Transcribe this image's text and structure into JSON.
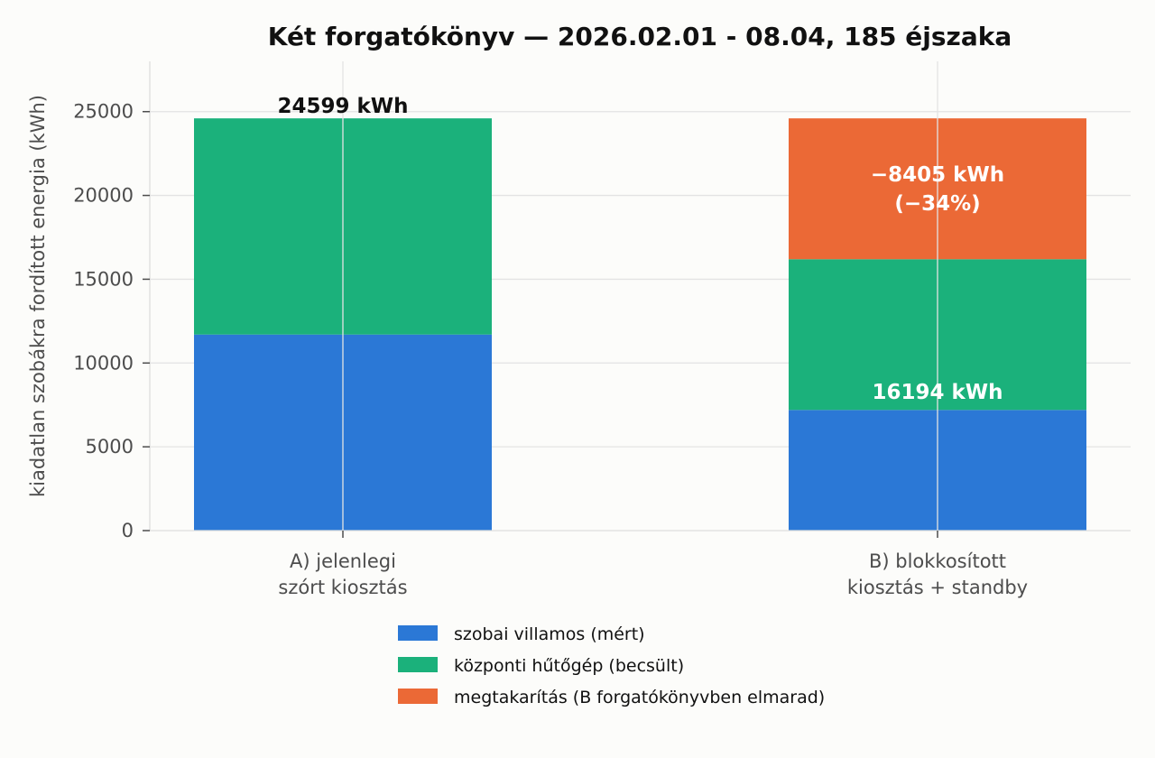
{
  "chart_data": {
    "type": "bar",
    "stacked": true,
    "title": "Két forgatókönyv — 2026.02.01 - 08.04, 185 éjszaka",
    "xlabel": "",
    "ylabel": "kiadatlan szobákra fordított energia (kWh)",
    "ylim": [
      0,
      28000
    ],
    "yticks": [
      0,
      5000,
      10000,
      15000,
      20000,
      25000
    ],
    "grid": true,
    "legend_position": "bottom-center",
    "categories": [
      [
        "A) jelenlegi",
        "szórt kiosztás"
      ],
      [
        "B) blokkosított",
        "kiosztás + standby"
      ]
    ],
    "series": [
      {
        "name": "szobai villamos (mért)",
        "color": "#2b78d6",
        "values": [
          11700,
          7200
        ]
      },
      {
        "name": "központi hűtőgép (becsült)",
        "color": "#1bb17b",
        "values": [
          12899,
          8994
        ]
      },
      {
        "name": "megtakarítás (B forgatókönyvben elmarad)",
        "color": "#eb6936",
        "values": [
          0,
          8405
        ]
      }
    ],
    "annotations": [
      {
        "category_index": 0,
        "y": 24599,
        "lines": [
          "24599 kWh"
        ],
        "color": "#111111",
        "placement": "above"
      },
      {
        "category_index": 1,
        "y": 20400,
        "lines": [
          "−8405 kWh",
          "(−34%)"
        ],
        "color": "#ffffff",
        "placement": "inside"
      },
      {
        "category_index": 1,
        "y": 8300,
        "lines": [
          "16194 kWh"
        ],
        "color": "#ffffff",
        "placement": "inside"
      }
    ]
  }
}
